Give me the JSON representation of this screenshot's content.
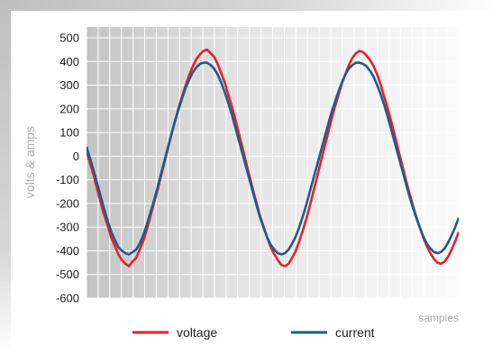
{
  "chart_data": {
    "type": "line",
    "xlabel": "samples",
    "ylabel": "volts & amps",
    "ylim": [
      -600,
      500
    ],
    "yticks": [
      500,
      400,
      300,
      200,
      100,
      0,
      -100,
      -200,
      -300,
      -400,
      -500,
      -600
    ],
    "grid": true,
    "legend_position": "bottom",
    "x": [
      0,
      4,
      8,
      12,
      16,
      20,
      24,
      28,
      32,
      36,
      40,
      44,
      48,
      52,
      56,
      60,
      64,
      68,
      72,
      76,
      80,
      84,
      88,
      92,
      96,
      100,
      104,
      108,
      112,
      116,
      120,
      124,
      128,
      132,
      136,
      140,
      144,
      148,
      152,
      156,
      160,
      164,
      168,
      172,
      176,
      180,
      184,
      188,
      192,
      196,
      200,
      204,
      208,
      212,
      216,
      220,
      224,
      228,
      232,
      236,
      240,
      244,
      248,
      252,
      256,
      260,
      264,
      268,
      272,
      276,
      280,
      284,
      288,
      292,
      296,
      300,
      304,
      308,
      312,
      316,
      320,
      324,
      328,
      332,
      336,
      340,
      344,
      348,
      352,
      356,
      360,
      364,
      368,
      372,
      376,
      380,
      384,
      388,
      392,
      396,
      400,
      404,
      408,
      412,
      416,
      420
    ],
    "series": [
      {
        "name": "voltage",
        "color": "#e8202a",
        "values": [
          20,
          -30,
          -80,
          -140,
          -195,
          -250,
          -295,
          -345,
          -380,
          -415,
          -440,
          -455,
          -465,
          -445,
          -430,
          -395,
          -360,
          -310,
          -255,
          -200,
          -145,
          -85,
          -25,
          35,
          95,
          150,
          205,
          255,
          300,
          345,
          380,
          410,
          430,
          445,
          450,
          435,
          420,
          390,
          350,
          310,
          260,
          210,
          155,
          95,
          35,
          -25,
          -85,
          -145,
          -200,
          -255,
          -300,
          -345,
          -385,
          -415,
          -440,
          -460,
          -465,
          -455,
          -430,
          -400,
          -360,
          -315,
          -265,
          -210,
          -150,
          -90,
          -30,
          30,
          90,
          150,
          205,
          255,
          305,
          345,
          385,
          415,
          435,
          445,
          440,
          425,
          405,
          380,
          345,
          300,
          250,
          200,
          145,
          85,
          25,
          -35,
          -95,
          -150,
          -205,
          -255,
          -300,
          -345,
          -380,
          -410,
          -435,
          -450,
          -455,
          -445,
          -425,
          -395,
          -360,
          -320
        ]
      },
      {
        "name": "current",
        "color": "#1f5a8c",
        "values": [
          40,
          -10,
          -60,
          -115,
          -170,
          -225,
          -275,
          -320,
          -355,
          -385,
          -400,
          -410,
          -415,
          -405,
          -395,
          -370,
          -335,
          -290,
          -240,
          -190,
          -135,
          -75,
          -20,
          40,
          95,
          150,
          200,
          245,
          290,
          325,
          355,
          375,
          390,
          395,
          395,
          385,
          370,
          345,
          310,
          270,
          225,
          175,
          120,
          65,
          10,
          -45,
          -100,
          -155,
          -210,
          -260,
          -305,
          -345,
          -375,
          -395,
          -410,
          -415,
          -410,
          -395,
          -370,
          -340,
          -300,
          -255,
          -205,
          -150,
          -95,
          -40,
          15,
          70,
          125,
          180,
          225,
          270,
          310,
          345,
          370,
          385,
          395,
          395,
          390,
          380,
          360,
          335,
          300,
          260,
          215,
          165,
          110,
          55,
          0,
          -55,
          -110,
          -165,
          -215,
          -260,
          -300,
          -340,
          -370,
          -390,
          -405,
          -410,
          -405,
          -390,
          -365,
          -335,
          -300,
          -260
        ]
      }
    ]
  }
}
